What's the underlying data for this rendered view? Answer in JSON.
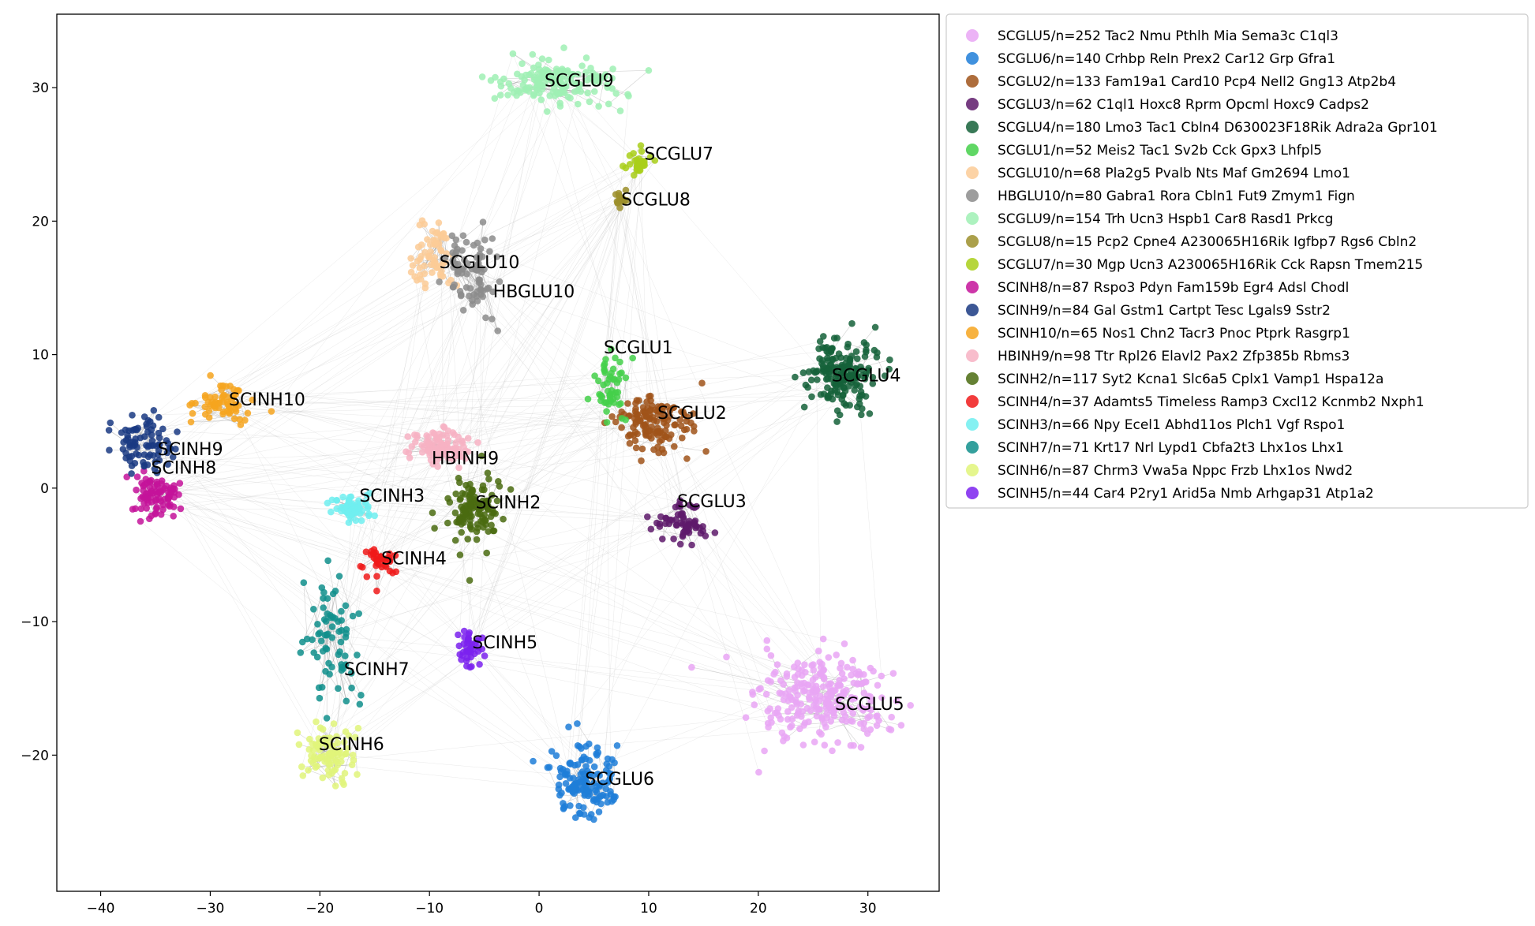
{
  "chart_data": {
    "type": "scatter",
    "title": "",
    "xlabel": "",
    "ylabel": "",
    "xlim": [
      -44,
      36.5
    ],
    "ylim": [
      -30.2,
      35.5
    ],
    "xticks": [
      -40,
      -30,
      -20,
      -10,
      0,
      10,
      20,
      30
    ],
    "yticks": [
      -20,
      -10,
      0,
      10,
      20,
      30
    ],
    "xtick_labels": [
      "−40",
      "−30",
      "−20",
      "−10",
      "0",
      "10",
      "20",
      "30"
    ],
    "ytick_labels": [
      "−20",
      "−10",
      "0",
      "10",
      "20",
      "30"
    ],
    "grid": false,
    "legend_position": "outside-right",
    "edges": "light gray lines connecting cells across clusters",
    "clusters": [
      {
        "name": "SCGLU5",
        "legend": "SCGLU5/n=252 Tac2 Nmu Pthlh Mia Sema3c C1ql3",
        "color": "#e9a6f5",
        "n": 252,
        "center": [
          26,
          -16
        ],
        "spread": [
          5.5,
          3.2
        ],
        "label_pos": [
          27,
          -16.2
        ]
      },
      {
        "name": "SCGLU6",
        "legend": "SCGLU6/n=140 Crhbp Reln Prex2 Car12 Grp Gfra1",
        "color": "#1f7ed8",
        "n": 140,
        "center": [
          4,
          -22
        ],
        "spread": [
          2.6,
          2.4
        ],
        "label_pos": [
          4.2,
          -21.8
        ]
      },
      {
        "name": "SCGLU2",
        "legend": "SCGLU2/n=133 Fam19a1 Card10 Pcp4 Nell2 Gng13 Atp2b4",
        "color": "#a0541a",
        "n": 133,
        "center": [
          10.5,
          4.8
        ],
        "spread": [
          3.2,
          2.0
        ],
        "label_pos": [
          10.8,
          5.6
        ]
      },
      {
        "name": "SCGLU3",
        "legend": "SCGLU3/n=62 C1ql1 Hoxc8 Rprm Opcml Hoxc9 Cadps2",
        "color": "#5e1a6b",
        "n": 62,
        "center": [
          13,
          -2.5
        ],
        "spread": [
          2.6,
          1.6
        ],
        "label_pos": [
          12.6,
          -1.0
        ]
      },
      {
        "name": "SCGLU4",
        "legend": "SCGLU4/n=180 Lmo3 Tac1 Cbln4 D630023F18Rik Adra2a Gpr101",
        "color": "#15613a",
        "n": 180,
        "center": [
          27.5,
          8.5
        ],
        "spread": [
          2.6,
          2.2
        ],
        "label_pos": [
          26.7,
          8.4
        ]
      },
      {
        "name": "SCGLU1",
        "legend": "SCGLU1/n=52 Meis2 Tac1 Sv2b Cck Gpx3 Lhfpl5",
        "color": "#44d04a",
        "n": 52,
        "center": [
          6.5,
          7.5
        ],
        "spread": [
          1.5,
          2.4
        ],
        "label_pos": [
          5.9,
          10.5
        ]
      },
      {
        "name": "SCGLU10",
        "legend": "SCGLU10/n=68 Pla2g5 Pvalb Nts Maf Gm2694 Lmo1",
        "color": "#fbcb97",
        "n": 68,
        "center": [
          -9.5,
          17.5
        ],
        "spread": [
          1.5,
          2.6
        ],
        "label_pos": [
          -9.1,
          16.9
        ]
      },
      {
        "name": "HBGLU10",
        "legend": "HBGLU10/n=80 Gabra1 Rora Cbln1 Fut9 Zmym1 Fign",
        "color": "#8c8c8c",
        "n": 80,
        "center": [
          -6,
          16.5
        ],
        "spread": [
          2.0,
          3.0
        ],
        "label_pos": [
          -4.2,
          14.7
        ]
      },
      {
        "name": "SCGLU9",
        "legend": "SCGLU9/n=154 Trh Ucn3 Hspb1 Car8 Rasd1 Prkcg",
        "color": "#9ff0b4",
        "n": 154,
        "center": [
          1.5,
          30.5
        ],
        "spread": [
          5.0,
          1.6
        ],
        "label_pos": [
          0.5,
          30.5
        ]
      },
      {
        "name": "SCGLU8",
        "legend": "SCGLU8/n=15 Pcp2 Cpne4 A230065H16Rik Igfbp7 Rgs6 Cbln2",
        "color": "#9c8f2c",
        "n": 15,
        "center": [
          7.5,
          21.5
        ],
        "spread": [
          0.5,
          0.7
        ],
        "label_pos": [
          7.5,
          21.6
        ]
      },
      {
        "name": "SCGLU7",
        "legend": "SCGLU7/n=30 Mgp Ucn3 A230065H16Rik Cck Rapsn Tmem215",
        "color": "#a9cf1a",
        "n": 30,
        "center": [
          9,
          24.5
        ],
        "spread": [
          1.0,
          1.0
        ],
        "label_pos": [
          9.6,
          25.0
        ]
      },
      {
        "name": "SCINH8",
        "legend": "SCINH8/n=87 Rspo3 Pdyn Fam159b Egr4 Adsl Chodl",
        "color": "#c4139a",
        "n": 87,
        "center": [
          -35,
          -0.5
        ],
        "spread": [
          2.0,
          1.5
        ],
        "label_pos": [
          -35.4,
          1.5
        ]
      },
      {
        "name": "SCINH9",
        "legend": "SCINH9/n=84 Gal Gstm1 Cartpt Tesc Lgals9 Sstr2",
        "color": "#1a3a82",
        "n": 84,
        "center": [
          -36,
          3.5
        ],
        "spread": [
          2.5,
          2.0
        ],
        "label_pos": [
          -34.8,
          2.9
        ]
      },
      {
        "name": "SCINH10",
        "legend": "SCINH10/n=65 Nos1 Chn2 Tacr3 Pnoc Ptprk Rasgrp1",
        "color": "#f6a41e",
        "n": 65,
        "center": [
          -29,
          6.5
        ],
        "spread": [
          2.5,
          1.5
        ],
        "label_pos": [
          -28.3,
          6.6
        ]
      },
      {
        "name": "HBINH9",
        "legend": "HBINH9/n=98 Ttr Rpl26 Elavl2 Pax2 Zfp385b Rbms3",
        "color": "#f7b1c3",
        "n": 98,
        "center": [
          -9,
          3.0
        ],
        "spread": [
          2.5,
          1.4
        ],
        "label_pos": [
          -9.8,
          2.2
        ]
      },
      {
        "name": "SCINH2",
        "legend": "SCINH2/n=117 Syt2 Kcna1 Slc6a5 Cplx1 Vamp1 Hspa12a",
        "color": "#4a6b11",
        "n": 117,
        "center": [
          -6.0,
          -1.5
        ],
        "spread": [
          2.2,
          2.4
        ],
        "label_pos": [
          -5.8,
          -1.1
        ]
      },
      {
        "name": "SCINH4",
        "legend": "SCINH4/n=37 Adamts5 Timeless Ramp3 Cxcl12 Kcnmb2 Nxph1",
        "color": "#f01a1a",
        "n": 37,
        "center": [
          -14.5,
          -5.5
        ],
        "spread": [
          1.5,
          1.0
        ],
        "label_pos": [
          -14.4,
          -5.3
        ]
      },
      {
        "name": "SCINH3",
        "legend": "SCINH3/n=66 Npy Ecel1 Abhd11os Plch1 Vgf Rspo1",
        "color": "#70eef0",
        "n": 66,
        "center": [
          -17,
          -1.5
        ],
        "spread": [
          1.8,
          1.0
        ],
        "label_pos": [
          -16.4,
          -0.6
        ]
      },
      {
        "name": "SCINH7",
        "legend": "SCINH7/n=71 Krt17 Nrl Lypd1 Cbfa2t3 Lhx1os Lhx1",
        "color": "#118f8c",
        "n": 71,
        "center": [
          -18.5,
          -11
        ],
        "spread": [
          2.0,
          4.0
        ],
        "label_pos": [
          -17.8,
          -13.6
        ]
      },
      {
        "name": "SCINH6",
        "legend": "SCINH6/n=87 Chrm3 Vwa5a Nppc Frzb Lhx1os Nwd2",
        "color": "#e1f57a",
        "n": 87,
        "center": [
          -19.5,
          -19.8
        ],
        "spread": [
          2.2,
          1.8
        ],
        "label_pos": [
          -20.1,
          -19.2
        ]
      },
      {
        "name": "SCINH5",
        "legend": "SCINH5/n=44 Car4 P2ry1 Arid5a Nmb Arhgap31 Atp1a2",
        "color": "#7b22ef",
        "n": 44,
        "center": [
          -6.2,
          -12.0
        ],
        "spread": [
          0.9,
          1.2
        ],
        "label_pos": [
          -6.1,
          -11.6
        ]
      }
    ]
  }
}
